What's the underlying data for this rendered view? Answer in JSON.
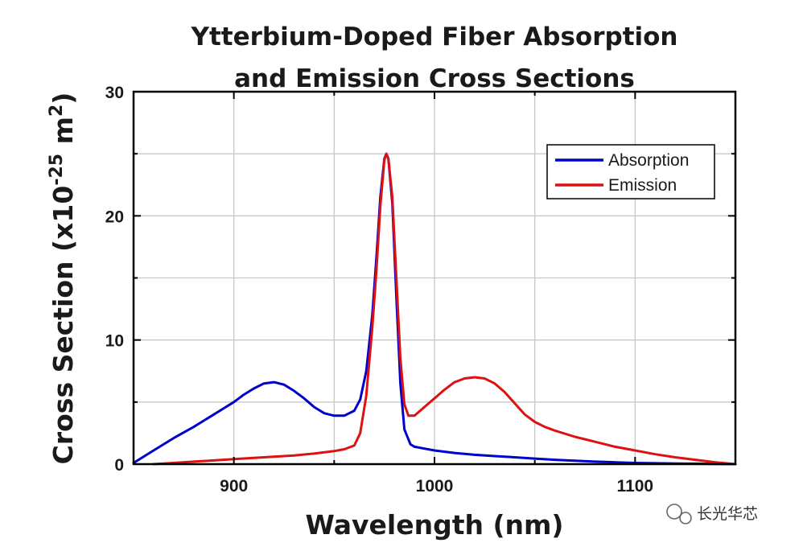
{
  "chart_data": {
    "type": "line",
    "title_lines": [
      "Ytterbium-Doped Fiber Absorption",
      "and Emission Cross Sections"
    ],
    "xlabel": "Wavelength (nm)",
    "ylabel_parts": {
      "main": "Cross Section (x10",
      "exp1": "-25",
      "mid": " m",
      "exp2": "2",
      "end": ")"
    },
    "xlim": [
      850,
      1150
    ],
    "ylim": [
      0,
      30
    ],
    "x_ticks": [
      900,
      1000,
      1100
    ],
    "y_ticks": [
      0,
      10,
      20,
      30
    ],
    "grid": true,
    "legend_position": "top-right",
    "series": [
      {
        "name": "Absorption",
        "color": "#0000cc",
        "x": [
          850,
          860,
          870,
          880,
          890,
          900,
          905,
          910,
          915,
          920,
          925,
          930,
          935,
          940,
          945,
          950,
          955,
          960,
          963,
          966,
          969,
          971,
          973,
          975,
          976,
          977,
          979,
          981,
          983,
          985,
          988,
          990,
          995,
          1000,
          1010,
          1020,
          1030,
          1040,
          1050,
          1060,
          1070,
          1080,
          1090,
          1100,
          1110,
          1120,
          1130,
          1140,
          1150
        ],
        "y": [
          0.1,
          1.1,
          2.1,
          3.0,
          4.0,
          5.0,
          5.6,
          6.1,
          6.5,
          6.6,
          6.4,
          5.9,
          5.3,
          4.6,
          4.1,
          3.9,
          3.9,
          4.3,
          5.2,
          7.5,
          12.0,
          16.5,
          21.5,
          24.6,
          25.0,
          24.6,
          21.0,
          13.5,
          6.5,
          2.8,
          1.6,
          1.4,
          1.25,
          1.1,
          0.9,
          0.75,
          0.65,
          0.55,
          0.45,
          0.35,
          0.27,
          0.2,
          0.15,
          0.1,
          0.07,
          0.05,
          0.03,
          0.02,
          0.0
        ]
      },
      {
        "name": "Emission",
        "color": "#dd1111",
        "x": [
          860,
          870,
          880,
          890,
          900,
          910,
          920,
          930,
          940,
          950,
          955,
          960,
          963,
          966,
          969,
          971,
          973,
          975,
          976,
          977,
          979,
          981,
          983,
          985,
          987,
          990,
          995,
          1000,
          1005,
          1010,
          1015,
          1020,
          1025,
          1030,
          1035,
          1040,
          1045,
          1050,
          1055,
          1060,
          1070,
          1080,
          1090,
          1100,
          1110,
          1120,
          1130,
          1140,
          1150
        ],
        "y": [
          0.0,
          0.1,
          0.2,
          0.3,
          0.4,
          0.5,
          0.6,
          0.7,
          0.85,
          1.05,
          1.2,
          1.5,
          2.5,
          5.5,
          11.0,
          15.5,
          20.8,
          24.5,
          25.0,
          24.6,
          21.5,
          15.0,
          8.5,
          4.8,
          3.9,
          3.9,
          4.6,
          5.3,
          6.0,
          6.6,
          6.9,
          7.0,
          6.9,
          6.5,
          5.8,
          4.9,
          4.0,
          3.4,
          3.0,
          2.7,
          2.2,
          1.8,
          1.4,
          1.1,
          0.8,
          0.55,
          0.35,
          0.15,
          0.0
        ]
      }
    ]
  },
  "watermark": {
    "icon": "wechat-icon",
    "text": "长光华芯"
  }
}
